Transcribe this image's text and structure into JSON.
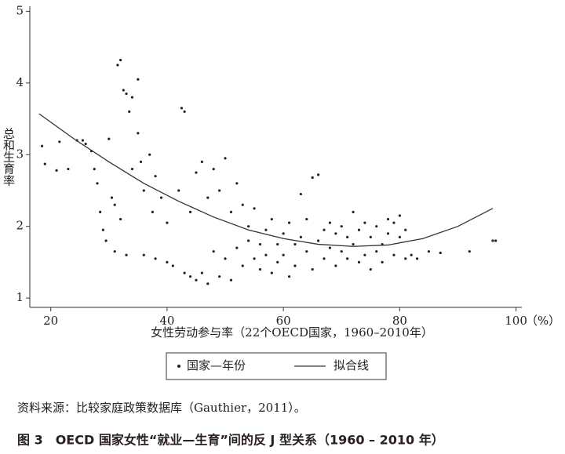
{
  "chart_data": {
    "type": "scatter",
    "xlabel": "女性劳动参与率（22个OECD国家，1960–2010年）",
    "x_unit": "（%）",
    "ylabel": "总和生育率",
    "xlim": [
      16.4,
      101
    ],
    "ylim": [
      0.87,
      5.07
    ],
    "xticks": [
      20,
      40,
      60,
      80,
      100
    ],
    "yticks": [
      1,
      2,
      3,
      4,
      5
    ],
    "legend_position": "bottom",
    "series": [
      {
        "name": "国家—年份",
        "color": "#222222",
        "x": [
          18.5,
          19,
          21,
          21.5,
          23,
          24.5,
          25.5,
          26,
          27,
          27.5,
          28,
          28.5,
          29,
          29.5,
          30,
          30.5,
          31,
          31,
          31.5,
          32,
          32,
          32.5,
          33,
          33,
          33.5,
          34,
          34,
          35,
          35,
          35.5,
          36,
          36,
          37,
          37.5,
          38,
          38,
          39,
          40,
          40,
          41,
          42,
          42.5,
          43,
          43,
          44,
          44,
          45,
          45,
          46,
          46,
          47,
          47,
          48,
          48,
          49,
          49,
          50,
          50,
          51,
          51,
          52,
          52,
          53,
          53,
          54,
          54,
          55,
          55,
          56,
          56,
          57,
          57,
          58,
          58,
          59,
          59,
          60,
          60,
          61,
          61,
          62,
          62,
          63,
          63,
          64,
          64,
          65,
          65,
          66,
          66,
          67,
          67,
          68,
          68,
          69,
          69,
          70,
          70,
          71,
          71,
          72,
          72,
          73,
          73,
          74,
          74,
          75,
          75,
          76,
          76,
          77,
          77,
          78,
          78,
          79,
          79,
          80,
          80,
          81,
          81,
          82,
          83,
          85,
          87,
          92,
          96,
          96.5
        ],
        "values": [
          3.12,
          2.87,
          2.78,
          3.18,
          2.8,
          3.2,
          3.2,
          3.15,
          3.05,
          2.8,
          2.6,
          2.2,
          1.95,
          1.8,
          3.22,
          2.4,
          2.3,
          1.65,
          4.25,
          4.32,
          2.1,
          3.9,
          3.85,
          1.6,
          3.6,
          3.8,
          2.8,
          4.05,
          3.3,
          2.9,
          2.5,
          1.6,
          3.0,
          2.2,
          2.7,
          1.55,
          2.4,
          1.5,
          2.05,
          1.45,
          2.5,
          3.65,
          1.35,
          3.6,
          1.3,
          2.2,
          2.75,
          1.25,
          2.9,
          1.35,
          2.4,
          1.2,
          2.8,
          1.65,
          2.5,
          1.3,
          2.95,
          1.55,
          2.2,
          1.25,
          2.6,
          1.7,
          2.3,
          1.45,
          2.0,
          1.8,
          1.55,
          2.25,
          1.75,
          1.4,
          1.95,
          1.6,
          2.1,
          1.35,
          1.75,
          1.5,
          1.9,
          1.6,
          1.3,
          2.05,
          1.75,
          1.45,
          2.45,
          1.85,
          1.65,
          2.1,
          2.68,
          1.4,
          2.72,
          1.8,
          1.55,
          1.95,
          2.05,
          1.7,
          1.45,
          1.9,
          2.0,
          1.65,
          1.55,
          1.85,
          2.2,
          1.75,
          1.5,
          1.95,
          1.6,
          2.05,
          1.85,
          1.4,
          2.0,
          1.65,
          1.75,
          1.5,
          1.9,
          2.1,
          1.6,
          2.05,
          1.85,
          2.15,
          1.55,
          1.95,
          1.6,
          1.55,
          1.65,
          1.63,
          1.65,
          1.8,
          1.8
        ]
      },
      {
        "name": "拟合线",
        "color": "#333333",
        "line": true,
        "x": [
          18,
          24,
          30,
          36,
          42,
          48,
          54,
          60,
          66,
          72,
          78,
          84,
          90,
          96
        ],
        "values": [
          3.57,
          3.22,
          2.9,
          2.6,
          2.35,
          2.13,
          1.95,
          1.83,
          1.75,
          1.72,
          1.74,
          1.83,
          2.0,
          2.25
        ]
      }
    ]
  },
  "source": "资料来源：比较家庭政策数据库（Gauthier，2011）。",
  "caption": "图 3　OECD 国家女性“就业—生育”间的反 J 型关系（1960 – 2010 年）"
}
